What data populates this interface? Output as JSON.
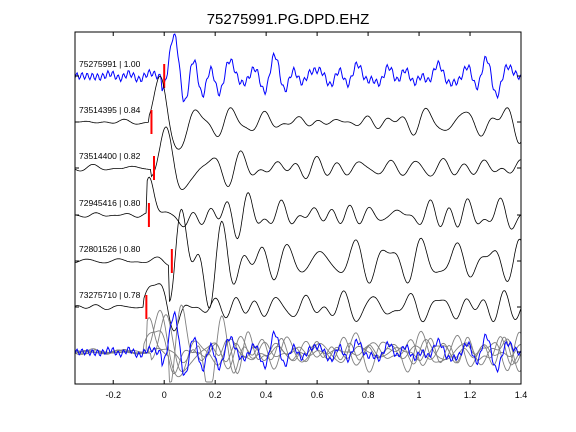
{
  "chart_data": {
    "type": "line",
    "title": "75275991.PG.DPD.EHZ",
    "xlabel": "",
    "ylabel": "",
    "xlim": [
      -0.35,
      1.4
    ],
    "xticks": [
      -0.2,
      0,
      0.2,
      0.4,
      0.6,
      0.8,
      1,
      1.2,
      1.4
    ],
    "xtick_labels": [
      "-0.2",
      "0",
      "0.2",
      "0.4",
      "0.6",
      "0.8",
      "1",
      "1.2",
      "1.4"
    ],
    "grid": false,
    "legend": "none",
    "colors": {
      "reference_trace": "#0000ff",
      "correlated_trace": "#000000",
      "stack_trace": "#808080",
      "pick_marker": "#ff0000",
      "axes": "#000000"
    },
    "series": [
      {
        "label": "75275991 | 1.00",
        "pick_time": 0.0,
        "reference": true
      },
      {
        "label": "73514395 | 0.84",
        "pick_time": -0.05
      },
      {
        "label": "73514400 | 0.82",
        "pick_time": -0.04
      },
      {
        "label": "72945416 | 0.80",
        "pick_time": -0.06
      },
      {
        "label": "72801526 | 0.80",
        "pick_time": 0.03
      },
      {
        "label": "73275710 | 0.78",
        "pick_time": -0.07
      }
    ],
    "overlay": {
      "description_visible": false,
      "rows": "stack"
    }
  }
}
